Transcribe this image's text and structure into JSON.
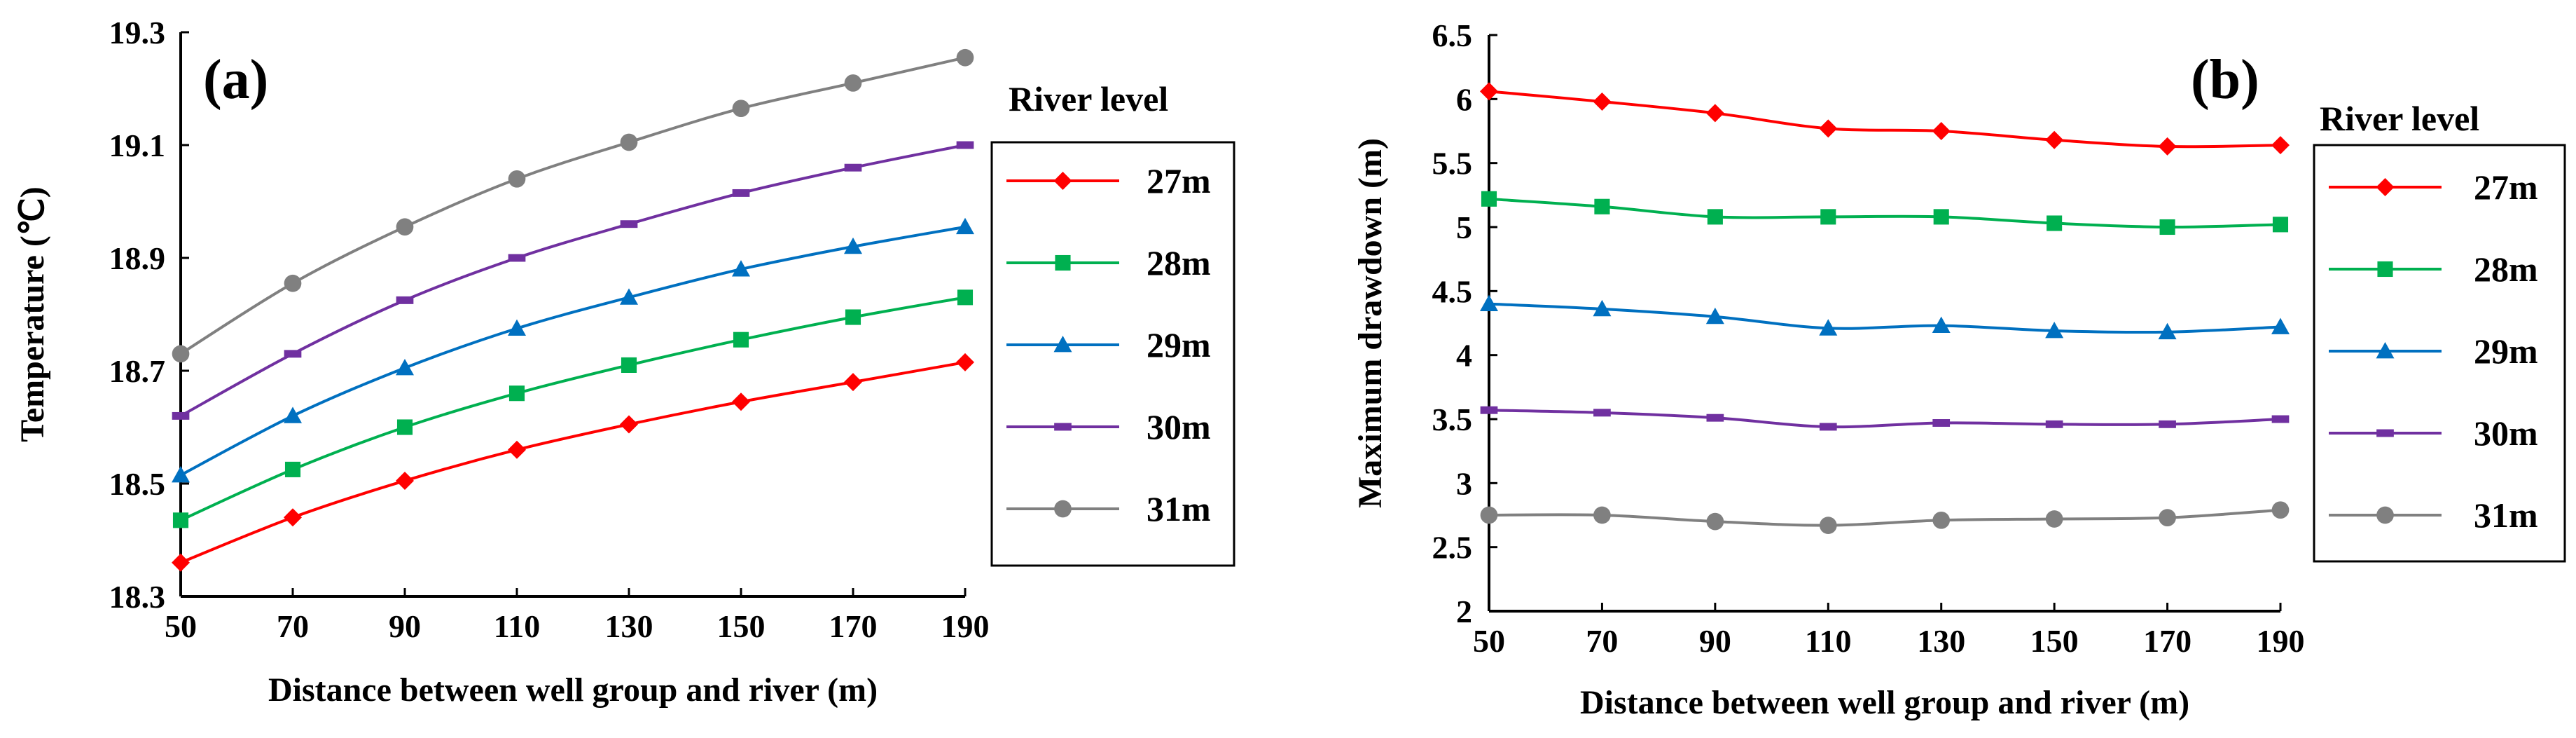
{
  "chart_data": [
    {
      "type": "line",
      "panel": "(a)",
      "xlabel": "Distance between well group and river (m)",
      "ylabel": "Temperature (℃)",
      "x": [
        50,
        70,
        90,
        110,
        130,
        150,
        170,
        190
      ],
      "xlim": [
        50,
        190
      ],
      "ylim": [
        18.3,
        19.3
      ],
      "yticks": [
        "18.3",
        "18.5",
        "18.7",
        "18.9",
        "19.1",
        "19.3"
      ],
      "legend_title": "River level",
      "series": [
        {
          "name": "27m",
          "color": "#ff0000",
          "marker": "diamond",
          "values": [
            18.36,
            18.44,
            18.505,
            18.56,
            18.605,
            18.645,
            18.68,
            18.715
          ]
        },
        {
          "name": "28m",
          "color": "#00b050",
          "marker": "square",
          "values": [
            18.435,
            18.525,
            18.6,
            18.66,
            18.71,
            18.755,
            18.795,
            18.83
          ]
        },
        {
          "name": "29m",
          "color": "#0070c0",
          "marker": "triangle",
          "values": [
            18.515,
            18.62,
            18.705,
            18.775,
            18.83,
            18.88,
            18.92,
            18.955
          ]
        },
        {
          "name": "30m",
          "color": "#7030a0",
          "marker": "dash",
          "values": [
            18.62,
            18.73,
            18.825,
            18.9,
            18.96,
            19.015,
            19.06,
            19.1
          ]
        },
        {
          "name": "31m",
          "color": "#808080",
          "marker": "circle",
          "values": [
            18.73,
            18.855,
            18.955,
            19.04,
            19.105,
            19.165,
            19.21,
            19.255
          ]
        }
      ]
    },
    {
      "type": "line",
      "panel": "(b)",
      "xlabel": "Distance between well group and river (m)",
      "ylabel": "Maximum drawdown  (m)",
      "x": [
        50,
        70,
        90,
        110,
        130,
        150,
        170,
        190
      ],
      "xlim": [
        50,
        190
      ],
      "ylim": [
        2,
        6.5
      ],
      "yticks": [
        "2",
        "2.5",
        "3",
        "3.5",
        "4",
        "4.5",
        "5",
        "5.5",
        "6",
        "6.5"
      ],
      "legend_title": "River level",
      "series": [
        {
          "name": "27m",
          "color": "#ff0000",
          "marker": "diamond",
          "values": [
            6.06,
            5.98,
            5.89,
            5.77,
            5.75,
            5.68,
            5.63,
            5.64
          ]
        },
        {
          "name": "28m",
          "color": "#00b050",
          "marker": "square",
          "values": [
            5.22,
            5.16,
            5.08,
            5.08,
            5.08,
            5.03,
            5.0,
            5.02
          ]
        },
        {
          "name": "29m",
          "color": "#0070c0",
          "marker": "triangle",
          "values": [
            4.4,
            4.36,
            4.3,
            4.21,
            4.23,
            4.19,
            4.18,
            4.22
          ]
        },
        {
          "name": "30m",
          "color": "#7030a0",
          "marker": "dash",
          "values": [
            3.57,
            3.55,
            3.51,
            3.44,
            3.47,
            3.46,
            3.46,
            3.5
          ]
        },
        {
          "name": "31m",
          "color": "#808080",
          "marker": "circle",
          "values": [
            2.75,
            2.75,
            2.7,
            2.67,
            2.71,
            2.72,
            2.73,
            2.79
          ]
        }
      ]
    }
  ]
}
